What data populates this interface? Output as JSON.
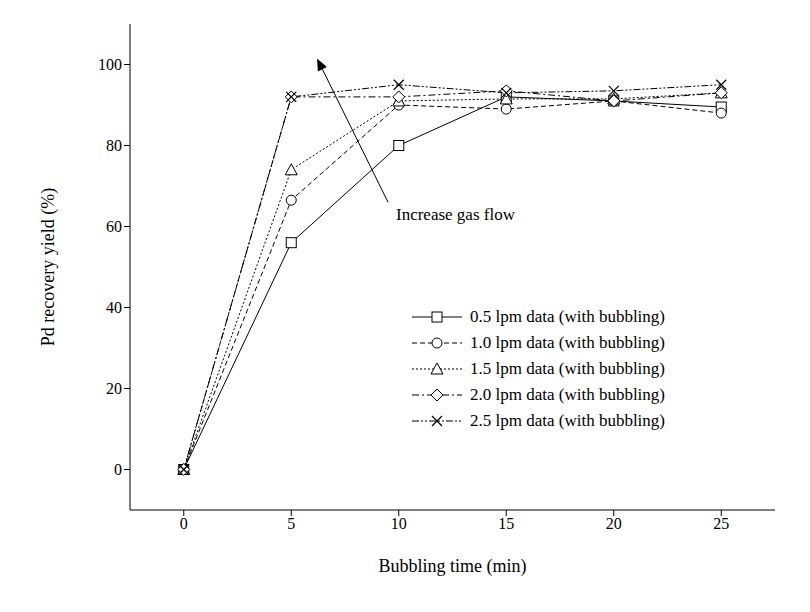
{
  "chart_data": {
    "type": "line",
    "x_label": "Bubbling time (min)",
    "y_label": "Pd recovery yield (%)",
    "x": [
      0,
      5,
      10,
      15,
      20,
      25
    ],
    "xlim": [
      -2.5,
      27.5
    ],
    "xticks": [
      0,
      5,
      10,
      15,
      20,
      25
    ],
    "ylim": [
      -10,
      110
    ],
    "yticks": [
      0,
      20,
      40,
      60,
      80,
      100
    ],
    "grid": false,
    "legend": "lower right",
    "series": [
      {
        "name": "0.5 lpm data (with bubbling)",
        "color": "#000000",
        "marker": "square",
        "line_style": "solid",
        "values": [
          0,
          56,
          80,
          92,
          91,
          89.5
        ]
      },
      {
        "name": "1.0 lpm data (with bubbling)",
        "color": "#000000",
        "marker": "circle",
        "line_style": "dashed",
        "values": [
          0,
          66.5,
          90,
          89,
          91,
          88
        ]
      },
      {
        "name": "1.5 lpm data (with bubbling)",
        "color": "#000000",
        "marker": "triangle",
        "line_style": "dotted",
        "values": [
          0,
          74,
          91,
          91.5,
          91.5,
          93
        ]
      },
      {
        "name": "2.0 lpm data (with bubbling)",
        "color": "#000000",
        "marker": "diamond",
        "line_style": "dashdot",
        "values": [
          0,
          92,
          92,
          93.5,
          91,
          93
        ]
      },
      {
        "name": "2.5 lpm data (with bubbling)",
        "color": "#000000",
        "marker": "x",
        "line_style": "dashdotdot",
        "values": [
          0,
          92,
          95,
          93,
          93.5,
          95
        ]
      }
    ],
    "annotations": [
      {
        "text": "Increase gas flow",
        "x": 9.5,
        "y": 66,
        "arrow_to": [
          6.2,
          101.5
        ]
      }
    ]
  }
}
